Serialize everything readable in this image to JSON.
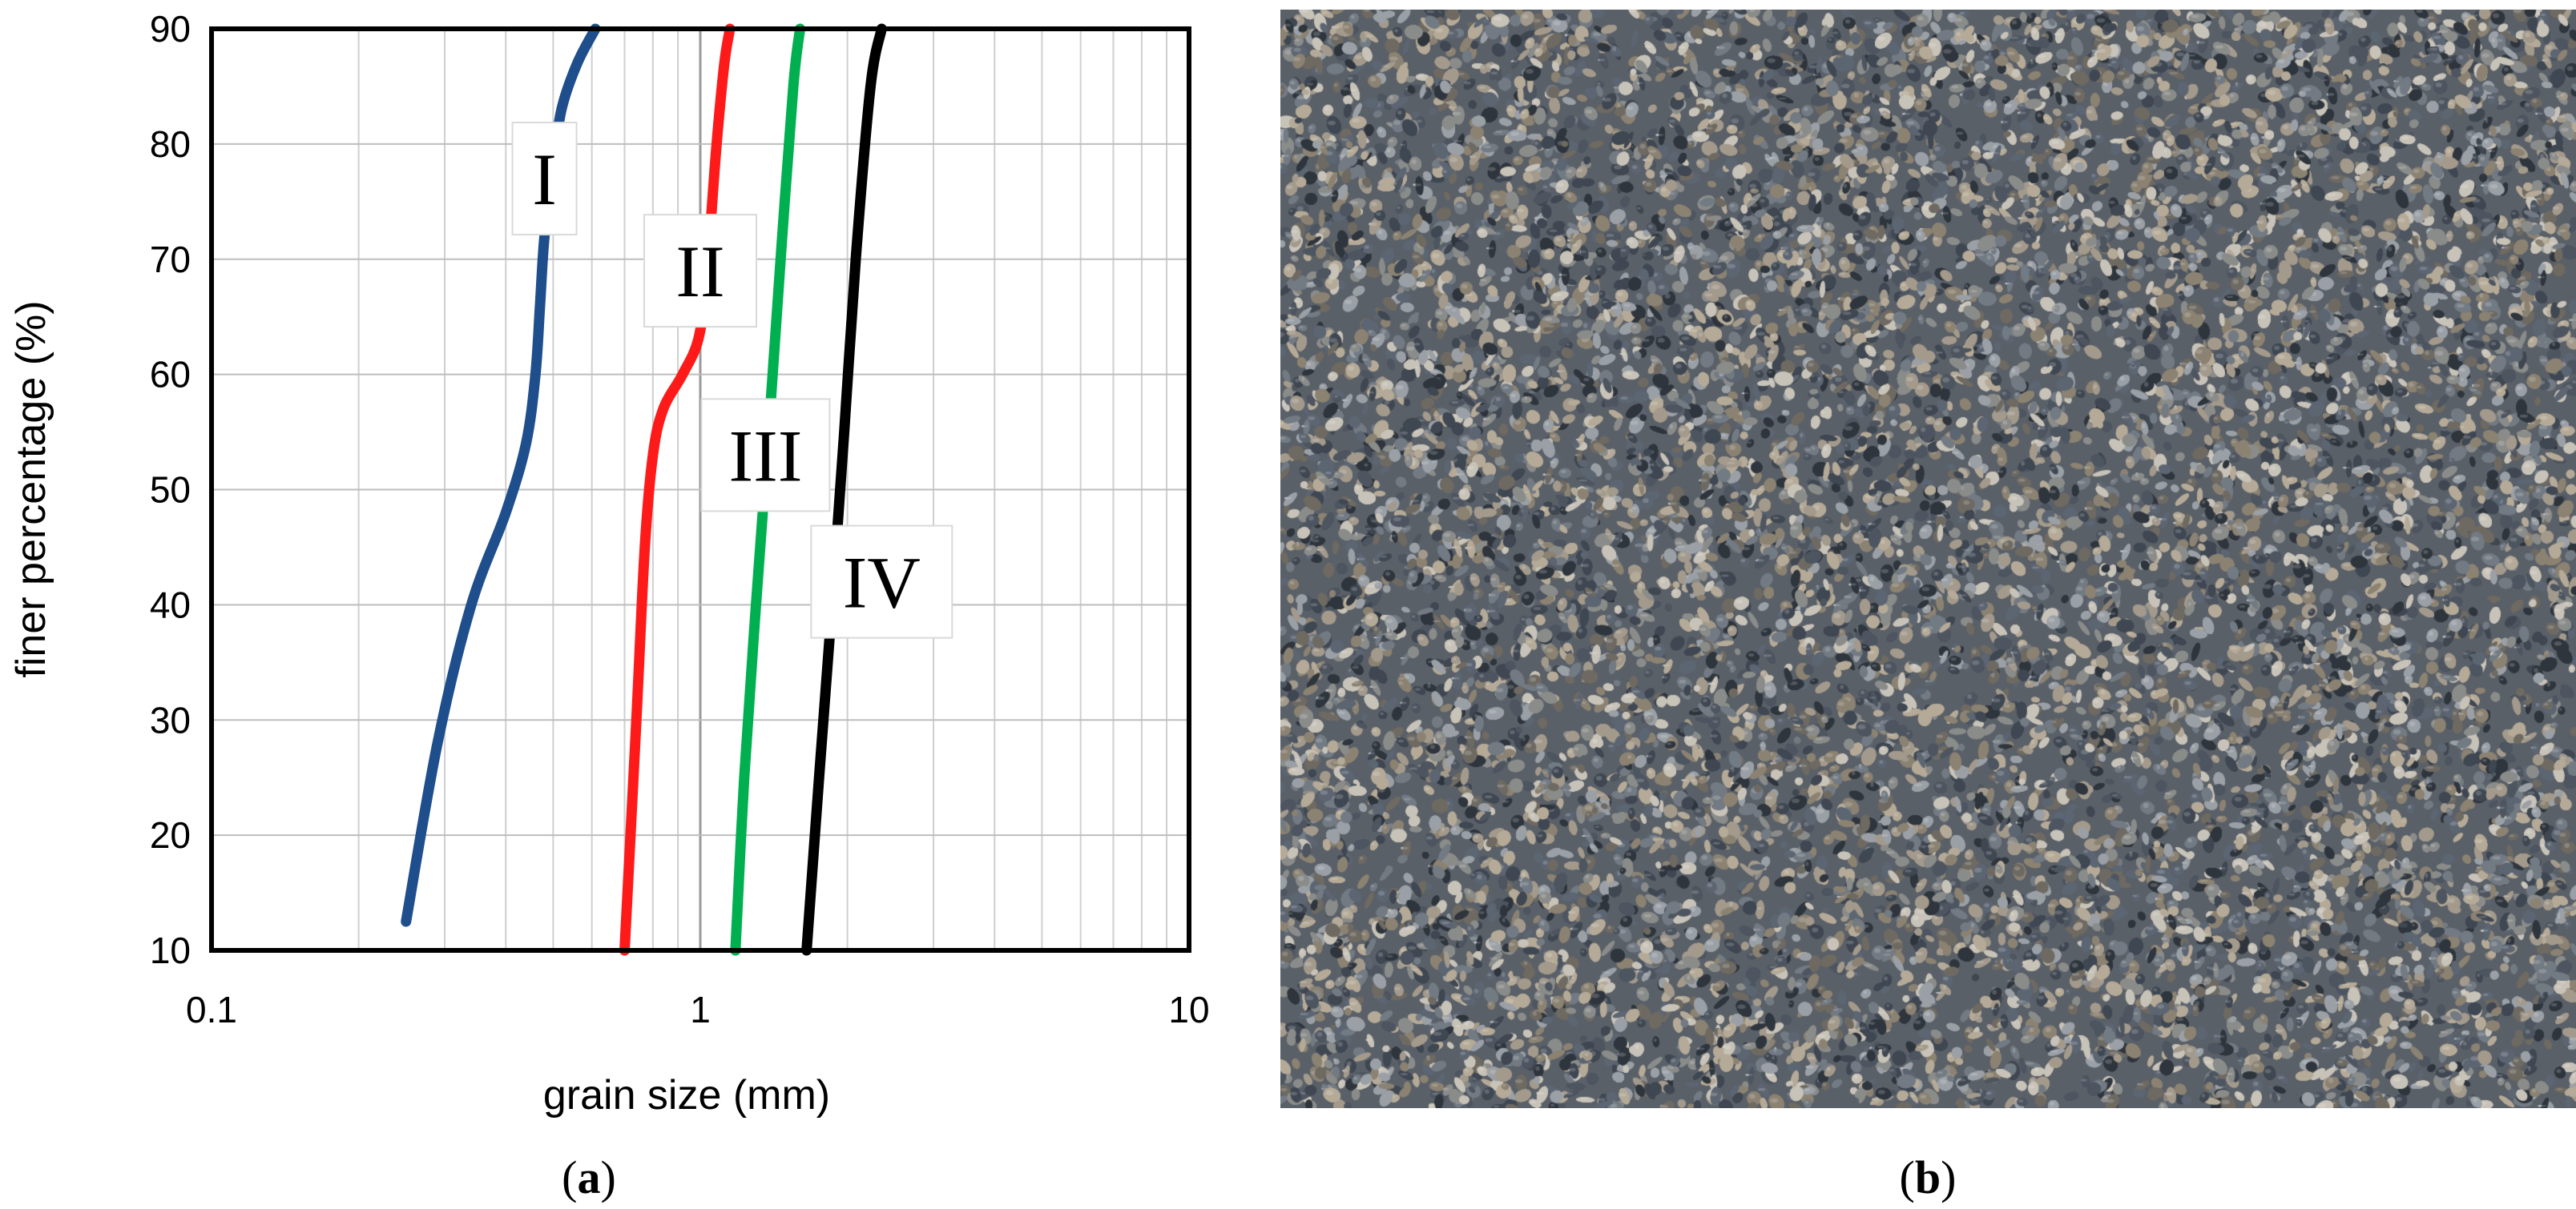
{
  "chart_data": {
    "type": "line",
    "xlabel": "grain size (mm)",
    "ylabel": "finer percentage (%)",
    "x_scale": "log",
    "xlim": [
      0.1,
      10
    ],
    "ylim": [
      10,
      90
    ],
    "x_ticks": [
      0.1,
      1,
      10
    ],
    "x_tick_labels": [
      "0.1",
      "1",
      "10"
    ],
    "y_ticks": [
      10,
      20,
      30,
      40,
      50,
      60,
      70,
      80,
      90
    ],
    "y_tick_labels": [
      "10",
      "20",
      "30",
      "40",
      "50",
      "60",
      "70",
      "80",
      "90"
    ],
    "grid": true,
    "series": [
      {
        "name": "I",
        "color": "#1f4e8c",
        "points": [
          [
            0.25,
            12.5
          ],
          [
            0.29,
            28
          ],
          [
            0.34,
            40
          ],
          [
            0.4,
            48
          ],
          [
            0.44,
            54
          ],
          [
            0.46,
            60
          ],
          [
            0.47,
            66
          ],
          [
            0.48,
            72
          ],
          [
            0.5,
            78
          ],
          [
            0.52,
            83
          ],
          [
            0.56,
            87
          ],
          [
            0.61,
            90
          ]
        ]
      },
      {
        "name": "II",
        "color": "#ff1a1a",
        "points": [
          [
            0.7,
            10
          ],
          [
            0.74,
            30
          ],
          [
            0.77,
            45
          ],
          [
            0.8,
            53
          ],
          [
            0.84,
            57
          ],
          [
            0.92,
            60
          ],
          [
            0.99,
            63
          ],
          [
            1.03,
            68
          ],
          [
            1.05,
            73
          ],
          [
            1.08,
            80
          ],
          [
            1.12,
            87
          ],
          [
            1.15,
            90
          ]
        ]
      },
      {
        "name": "III",
        "color": "#00b050",
        "points": [
          [
            1.18,
            10
          ],
          [
            1.23,
            25
          ],
          [
            1.3,
            40
          ],
          [
            1.38,
            55
          ],
          [
            1.46,
            70
          ],
          [
            1.55,
            85
          ],
          [
            1.6,
            90
          ]
        ]
      },
      {
        "name": "IV",
        "color": "#000000",
        "points": [
          [
            1.65,
            10
          ],
          [
            1.75,
            25
          ],
          [
            1.86,
            40
          ],
          [
            1.97,
            55
          ],
          [
            2.08,
            70
          ],
          [
            2.23,
            85
          ],
          [
            2.35,
            90
          ]
        ]
      }
    ],
    "annotations": [
      {
        "text": "I",
        "x": 0.48,
        "y": 77
      },
      {
        "text": "II",
        "x": 1.0,
        "y": 69
      },
      {
        "text": "III",
        "x": 1.36,
        "y": 53
      },
      {
        "text": "IV",
        "x": 2.35,
        "y": 42
      }
    ]
  },
  "panels": {
    "a": {
      "open": "(",
      "letter": "a",
      "close": ")"
    },
    "b": {
      "open": "(",
      "letter": "b",
      "close": ")"
    }
  },
  "photo": {
    "colors": [
      "#5c6572",
      "#727a83",
      "#8a8c8a",
      "#a39a8c",
      "#b5aa97",
      "#3f4752",
      "#6e6a62",
      "#c8c3b8",
      "#4d5560",
      "#8b8272",
      "#9aa0a6",
      "#2f353d"
    ],
    "background": "#5a6068"
  }
}
